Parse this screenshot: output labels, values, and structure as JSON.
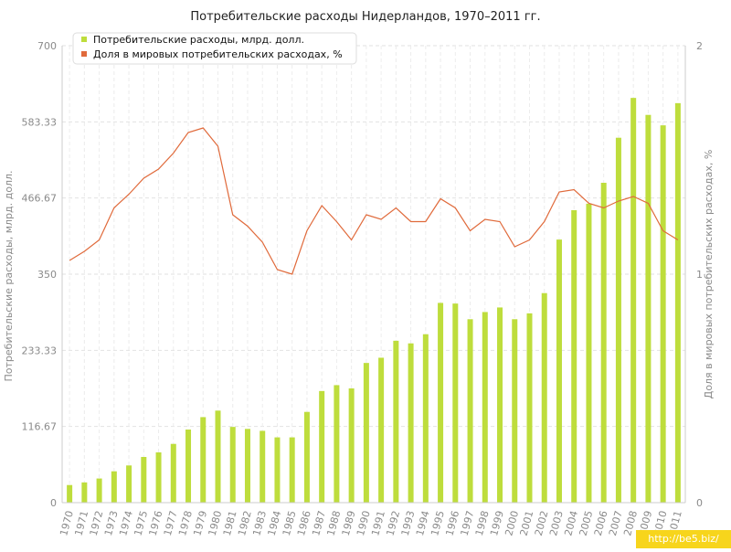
{
  "chart_data": {
    "type": "bar+line",
    "title": "Потребительские расходы Нидерландов, 1970–2011 гг.",
    "categories": [
      "1970",
      "1971",
      "1972",
      "1973",
      "1974",
      "1975",
      "1976",
      "1977",
      "1978",
      "1979",
      "1980",
      "1981",
      "1982",
      "1983",
      "1984",
      "1985",
      "1986",
      "1987",
      "1988",
      "1989",
      "1990",
      "1991",
      "1992",
      "1993",
      "1994",
      "1995",
      "1996",
      "1997",
      "1998",
      "1999",
      "2000",
      "2001",
      "2002",
      "2003",
      "2004",
      "2005",
      "2006",
      "2007",
      "2008",
      "2009",
      "2010",
      "2011"
    ],
    "series": [
      {
        "name": "Потребительские расходы, млрд. долл.",
        "type": "bar",
        "axis": "left",
        "color": "#bedd3c",
        "values": [
          27,
          31,
          37,
          48,
          57,
          70,
          77,
          90,
          112,
          131,
          141,
          116,
          113,
          110,
          100,
          100,
          139,
          171,
          180,
          175,
          214,
          222,
          248,
          244,
          258,
          306,
          305,
          281,
          292,
          299,
          281,
          290,
          321,
          403,
          448,
          458,
          490,
          559,
          620,
          594,
          578,
          612
        ]
      },
      {
        "name": "Доля в мировых потребительских расходах, %",
        "type": "line",
        "axis": "right",
        "color": "#e06a3b",
        "values": [
          1.06,
          1.1,
          1.15,
          1.29,
          1.35,
          1.42,
          1.46,
          1.53,
          1.62,
          1.64,
          1.56,
          1.26,
          1.21,
          1.14,
          1.02,
          1.0,
          1.19,
          1.3,
          1.23,
          1.15,
          1.26,
          1.24,
          1.29,
          1.23,
          1.23,
          1.33,
          1.29,
          1.19,
          1.24,
          1.23,
          1.12,
          1.15,
          1.23,
          1.36,
          1.37,
          1.31,
          1.29,
          1.32,
          1.34,
          1.31,
          1.19,
          1.15
        ]
      }
    ],
    "ylabel": "Потребительские расходы, млрд. долл.",
    "y2label": "Доля в мировых потребительских расходах, %",
    "ylim": [
      0,
      700
    ],
    "yticks": [
      "0",
      "116.67",
      "233.33",
      "350",
      "466.67",
      "583.33",
      "700"
    ],
    "y2lim": [
      0,
      2
    ],
    "y2ticks": [
      "0",
      "1",
      "2"
    ],
    "grid": true,
    "legend": "top-left"
  },
  "watermark": "http://be5.biz/"
}
